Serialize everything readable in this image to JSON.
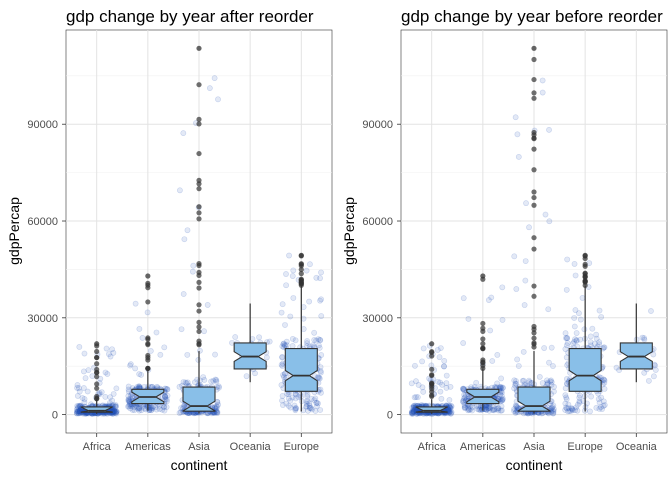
{
  "chart_data": [
    {
      "type": "boxplot",
      "title": "gdp change by year after reorder",
      "xlabel": "continent",
      "ylabel": "gdpPercap",
      "categories": [
        "Africa",
        "Americas",
        "Asia",
        "Oceania",
        "Europe"
      ],
      "yticks": [
        0,
        30000,
        60000,
        90000
      ],
      "ylim": [
        0,
        113523
      ],
      "grid": true,
      "notched": true,
      "jitter_points": true,
      "box_fill": "#89bfe8",
      "point_color": "#2353b8",
      "outlier_color": "#333333",
      "boxes": [
        {
          "name": "Africa",
          "min": 241,
          "q1": 761,
          "median": 1192,
          "q3": 2377,
          "whisker_low": 241,
          "whisker_high": 4800,
          "max": 21951
        },
        {
          "name": "Americas",
          "min": 1202,
          "q1": 3428,
          "median": 5466,
          "q3": 7830,
          "whisker_low": 1202,
          "whisker_high": 14300,
          "max": 42952
        },
        {
          "name": "Asia",
          "min": 331,
          "q1": 1057,
          "median": 2647,
          "q3": 8549,
          "whisker_low": 331,
          "whisker_high": 19700,
          "max": 113523
        },
        {
          "name": "Oceania",
          "min": 10040,
          "q1": 14142,
          "median": 17983,
          "q3": 22214,
          "whisker_low": 10040,
          "whisker_high": 34435,
          "max": 34435
        },
        {
          "name": "Europe",
          "min": 974,
          "q1": 7213,
          "median": 12082,
          "q3": 20461,
          "whisker_low": 974,
          "whisker_high": 40000,
          "max": 49357
        }
      ]
    },
    {
      "type": "boxplot",
      "title": "gdp change by year before reorder",
      "xlabel": "continent",
      "ylabel": "gdpPercap",
      "categories": [
        "Africa",
        "Americas",
        "Asia",
        "Europe",
        "Oceania"
      ],
      "yticks": [
        0,
        30000,
        60000,
        90000
      ],
      "ylim": [
        0,
        113523
      ],
      "grid": true,
      "notched": true,
      "jitter_points": true,
      "box_fill": "#89bfe8",
      "point_color": "#2353b8",
      "outlier_color": "#333333",
      "boxes": [
        {
          "name": "Africa",
          "min": 241,
          "q1": 761,
          "median": 1192,
          "q3": 2377,
          "whisker_low": 241,
          "whisker_high": 4800,
          "max": 21951
        },
        {
          "name": "Americas",
          "min": 1202,
          "q1": 3428,
          "median": 5466,
          "q3": 7830,
          "whisker_low": 1202,
          "whisker_high": 14300,
          "max": 42952
        },
        {
          "name": "Asia",
          "min": 331,
          "q1": 1057,
          "median": 2647,
          "q3": 8549,
          "whisker_low": 331,
          "whisker_high": 19700,
          "max": 113523
        },
        {
          "name": "Europe",
          "min": 974,
          "q1": 7213,
          "median": 12082,
          "q3": 20461,
          "whisker_low": 974,
          "whisker_high": 40000,
          "max": 49357
        },
        {
          "name": "Oceania",
          "min": 10040,
          "q1": 14142,
          "median": 17983,
          "q3": 22214,
          "whisker_low": 10040,
          "whisker_high": 34435,
          "max": 34435
        }
      ]
    }
  ]
}
